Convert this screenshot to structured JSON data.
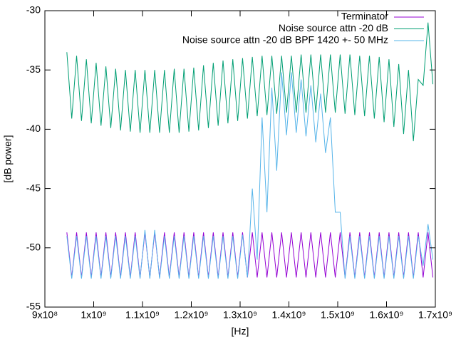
{
  "chart_data": {
    "type": "line",
    "xlabel": "[Hz]",
    "ylabel": "[dB power]",
    "x": [
      945000000,
      955000000,
      965000000,
      975000000,
      985000000,
      995000000,
      1005000000,
      1015000000,
      1025000000,
      1035000000,
      1045000000,
      1055000000,
      1065000000,
      1075000000,
      1085000000,
      1095000000,
      1105000000,
      1115000000,
      1125000000,
      1135000000,
      1145000000,
      1155000000,
      1165000000,
      1175000000,
      1185000000,
      1195000000,
      1205000000,
      1215000000,
      1225000000,
      1235000000,
      1245000000,
      1255000000,
      1265000000,
      1275000000,
      1285000000,
      1295000000,
      1305000000,
      1315000000,
      1325000000,
      1335000000,
      1345000000,
      1355000000,
      1365000000,
      1375000000,
      1385000000,
      1395000000,
      1405000000,
      1415000000,
      1425000000,
      1435000000,
      1445000000,
      1455000000,
      1465000000,
      1475000000,
      1485000000,
      1495000000,
      1505000000,
      1515000000,
      1525000000,
      1535000000,
      1545000000,
      1555000000,
      1565000000,
      1575000000,
      1585000000,
      1595000000,
      1605000000,
      1615000000,
      1625000000,
      1635000000,
      1645000000,
      1655000000,
      1665000000,
      1675000000,
      1685000000,
      1695000000
    ],
    "series": [
      {
        "name": "Terminator",
        "color": "#9400d3",
        "values": [
          -48.7,
          -52.5,
          -48.7,
          -52.5,
          -48.7,
          -52.5,
          -48.7,
          -52.5,
          -48.7,
          -52.5,
          -48.7,
          -52.5,
          -48.7,
          -52.5,
          -48.7,
          -52.5,
          -48.7,
          -52.5,
          -48.7,
          -52.5,
          -48.7,
          -52.5,
          -48.7,
          -52.5,
          -48.7,
          -52.5,
          -48.7,
          -52.5,
          -48.7,
          -52.5,
          -48.7,
          -52.5,
          -48.7,
          -52.5,
          -48.7,
          -52.5,
          -48.7,
          -52.5,
          -48.7,
          -52.5,
          -48.7,
          -52.5,
          -48.7,
          -52.5,
          -48.7,
          -52.5,
          -48.7,
          -52.5,
          -48.7,
          -52.5,
          -48.7,
          -52.5,
          -48.7,
          -52.5,
          -48.7,
          -52.5,
          -48.7,
          -52.5,
          -48.7,
          -52.5,
          -48.7,
          -52.5,
          -48.7,
          -52.5,
          -48.7,
          -52.5,
          -48.7,
          -52.5,
          -48.7,
          -52.5,
          -48.7,
          -52.5,
          -48.7,
          -52.5,
          -48.7,
          -52.5
        ]
      },
      {
        "name": "Noise source attn -20 dB",
        "color": "#009e73",
        "values": [
          -33.5,
          -39.1,
          -33.8,
          -39.3,
          -34.1,
          -39.5,
          -34.4,
          -39.7,
          -34.7,
          -39.9,
          -34.9,
          -40.1,
          -35.0,
          -40.2,
          -35.0,
          -40.3,
          -35.0,
          -40.3,
          -35.0,
          -40.3,
          -35.0,
          -40.3,
          -34.9,
          -40.3,
          -34.9,
          -40.2,
          -34.8,
          -40.1,
          -34.6,
          -39.9,
          -34.4,
          -39.7,
          -34.2,
          -39.5,
          -34.1,
          -39.3,
          -34.0,
          -39.1,
          -33.9,
          -38.9,
          -33.8,
          -38.8,
          -33.8,
          -38.7,
          -33.8,
          -38.6,
          -33.8,
          -38.6,
          -33.7,
          -38.6,
          -33.7,
          -38.6,
          -33.7,
          -38.6,
          -33.7,
          -38.6,
          -33.7,
          -38.7,
          -33.7,
          -38.8,
          -33.8,
          -38.9,
          -33.8,
          -39.1,
          -33.9,
          -39.4,
          -34.1,
          -39.8,
          -34.5,
          -40.4,
          -35.0,
          -41.0,
          -35.8,
          -36.3,
          -31.0,
          -36.2
        ]
      },
      {
        "name": "Noise source attn -20 dB BPF 1420 +- 50 MHz",
        "color": "#56b4e9",
        "values": [
          -49.0,
          -52.6,
          -49.0,
          -52.6,
          -49.0,
          -52.6,
          -49.0,
          -52.6,
          -49.0,
          -52.6,
          -49.0,
          -52.6,
          -49.0,
          -52.6,
          -49.0,
          -52.6,
          -48.5,
          -52.6,
          -48.5,
          -52.6,
          -49.0,
          -52.6,
          -49.0,
          -52.6,
          -49.0,
          -52.6,
          -49.0,
          -52.6,
          -49.0,
          -52.6,
          -49.0,
          -52.6,
          -49.0,
          -52.6,
          -49.0,
          -52.6,
          -48.9,
          -52.5,
          -45,
          -51,
          -39,
          -47,
          -36.5,
          -43.5,
          -35.2,
          -40.5,
          -35.2,
          -40.3,
          -35.8,
          -40.6,
          -36.3,
          -41.1,
          -37.0,
          -42.0,
          -39,
          -47,
          -47,
          -52.6,
          -49.0,
          -52.6,
          -49.0,
          -52.6,
          -49.0,
          -52.6,
          -49.0,
          -52.6,
          -49.0,
          -52.6,
          -49.0,
          -52.6,
          -49.0,
          -52.6,
          -49.0,
          -51.5,
          -48.0,
          -51.0
        ]
      }
    ],
    "xlim": [
      900000000,
      1700000000
    ],
    "xticks": [
      {
        "value": 900000000,
        "label": "9x10⁸"
      },
      {
        "value": 1000000000,
        "label": "1x10⁹"
      },
      {
        "value": 1100000000,
        "label": "1.1x10⁹"
      },
      {
        "value": 1200000000,
        "label": "1.2x10⁹"
      },
      {
        "value": 1300000000,
        "label": "1.3x10⁹"
      },
      {
        "value": 1400000000,
        "label": "1.4x10⁹"
      },
      {
        "value": 1500000000,
        "label": "1.5x10⁹"
      },
      {
        "value": 1600000000,
        "label": "1.6x10⁹"
      },
      {
        "value": 1700000000,
        "label": "1.7x10⁹"
      }
    ],
    "ylim": [
      -55,
      -30
    ],
    "yticks": [
      -55,
      -50,
      -45,
      -40,
      -35,
      -30
    ],
    "grid": false,
    "legend": "top-right"
  }
}
